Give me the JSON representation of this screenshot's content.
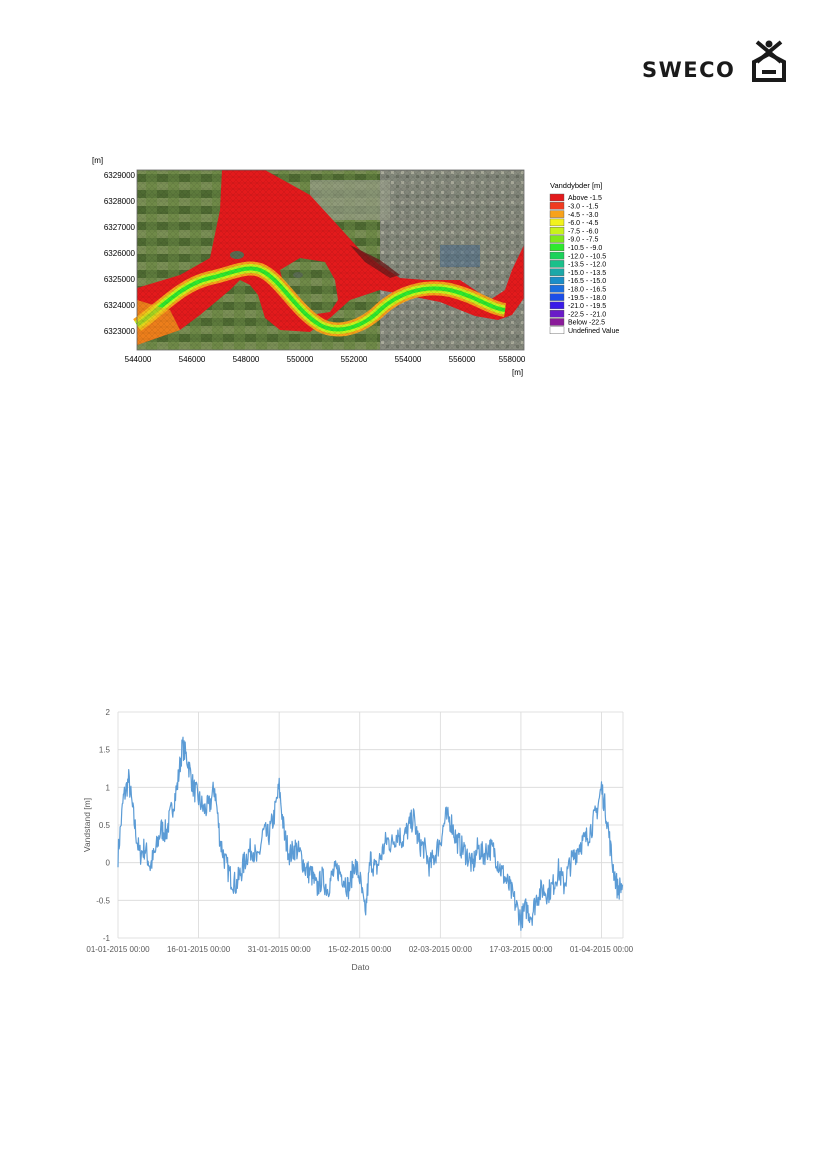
{
  "logo": {
    "text": "SWECO"
  },
  "map_figure": {
    "y_unit": "[m]",
    "x_unit": "[m]",
    "y_ticks": [
      "6329000",
      "6328000",
      "6327000",
      "6326000",
      "6325000",
      "6324000",
      "6323000"
    ],
    "x_ticks": [
      "544000",
      "546000",
      "548000",
      "550000",
      "552000",
      "554000",
      "556000",
      "558000"
    ],
    "legend": {
      "title": "Vanddybder [m]",
      "items": [
        {
          "label": "Above  -1.5",
          "color": "#e31a1c"
        },
        {
          "label": "-3.0 -  -1.5",
          "color": "#f03b20"
        },
        {
          "label": "-4.5 -  -3.0",
          "color": "#f7a21b"
        },
        {
          "label": "-6.0 -  -4.5",
          "color": "#f2f21b"
        },
        {
          "label": "-7.5 -  -6.0",
          "color": "#c8f21b"
        },
        {
          "label": "-9.0 -  -7.5",
          "color": "#7ee81b"
        },
        {
          "label": "-10.5 -  -9.0",
          "color": "#2ee82e"
        },
        {
          "label": "-12.0 - -10.5",
          "color": "#1bd25a"
        },
        {
          "label": "-13.5 - -12.0",
          "color": "#1bc08a"
        },
        {
          "label": "-15.0 - -13.5",
          "color": "#1ba8a8"
        },
        {
          "label": "-16.5 - -15.0",
          "color": "#1b8ec8"
        },
        {
          "label": "-18.0 - -16.5",
          "color": "#1b6ee0"
        },
        {
          "label": "-19.5 - -18.0",
          "color": "#1b4ee8"
        },
        {
          "label": "-21.0 - -19.5",
          "color": "#3a1be8"
        },
        {
          "label": "-22.5 - -21.0",
          "color": "#6a1bc8"
        },
        {
          "label": "Below  -22.5",
          "color": "#8a1b9a"
        },
        {
          "label": "Undefined Value",
          "color": "#ffffff"
        }
      ]
    }
  },
  "chart_data": {
    "type": "line",
    "xlabel": "Dato",
    "ylabel": "Vandstand [m]",
    "ylim": [
      -1,
      2
    ],
    "yticks": [
      2,
      1.5,
      1,
      0.5,
      0,
      -0.5,
      -1
    ],
    "ytick_labels": [
      "2",
      "1.5",
      "1",
      "0.5",
      "0",
      "-0.5",
      "-1"
    ],
    "x_tick_labels": [
      "01-01-2015 00:00",
      "16-01-2015 00:00",
      "31-01-2015 00:00",
      "15-02-2015 00:00",
      "02-03-2015 00:00",
      "17-03-2015 00:00",
      "01-04-2015 00:00"
    ],
    "grid": true,
    "line_color": "#5b9bd5",
    "series": [
      {
        "x": [
          "01-01",
          "02-01",
          "03-01",
          "04-01",
          "05-01",
          "06-01",
          "07-01",
          "08-01",
          "09-01",
          "10-01",
          "11-01",
          "12-01",
          "13-01",
          "14-01",
          "15-01",
          "16-01",
          "17-01",
          "18-01",
          "19-01",
          "20-01",
          "21-01",
          "22-01",
          "23-01",
          "24-01",
          "25-01",
          "26-01",
          "27-01",
          "28-01",
          "29-01",
          "30-01",
          "31-01",
          "01-02",
          "02-02",
          "03-02",
          "04-02",
          "05-02",
          "06-02",
          "07-02",
          "08-02",
          "09-02",
          "10-02",
          "11-02",
          "12-02",
          "13-02",
          "14-02",
          "15-02",
          "16-02",
          "17-02",
          "18-02",
          "19-02",
          "20-02",
          "21-02",
          "22-02",
          "23-02",
          "24-02",
          "25-02",
          "26-02",
          "27-02",
          "28-02",
          "01-03",
          "02-03",
          "03-03",
          "04-03",
          "05-03",
          "06-03",
          "07-03",
          "08-03",
          "09-03",
          "10-03",
          "11-03",
          "12-03",
          "13-03",
          "14-03",
          "15-03",
          "16-03",
          "17-03",
          "18-03",
          "19-03",
          "20-03",
          "21-03",
          "22-03",
          "23-03",
          "24-03",
          "25-03",
          "26-03",
          "27-03",
          "28-03",
          "29-03",
          "30-03",
          "31-03",
          "01-04",
          "02-04",
          "03-04",
          "04-04",
          "05-04"
        ],
        "values": [
          0.1,
          0.85,
          1.1,
          0.55,
          0.1,
          0.2,
          -0.05,
          0.15,
          0.45,
          0.4,
          0.7,
          1.0,
          1.55,
          1.35,
          1.0,
          0.85,
          0.7,
          0.75,
          1.0,
          0.3,
          0.0,
          -0.2,
          -0.3,
          -0.1,
          0.1,
          0.2,
          0.0,
          0.4,
          0.35,
          0.6,
          1.0,
          0.35,
          0.1,
          0.2,
          0.1,
          -0.1,
          -0.15,
          -0.35,
          -0.2,
          -0.35,
          -0.15,
          -0.1,
          -0.2,
          -0.35,
          0.0,
          -0.2,
          -0.7,
          0.05,
          -0.1,
          0.1,
          0.3,
          0.25,
          0.4,
          0.3,
          0.45,
          0.6,
          0.25,
          0.2,
          -0.05,
          0.1,
          0.3,
          0.6,
          0.55,
          0.3,
          0.2,
          0.1,
          -0.05,
          0.2,
          0.1,
          0.2,
          0.15,
          -0.05,
          -0.2,
          -0.35,
          -0.55,
          -0.75,
          -0.6,
          -0.7,
          -0.45,
          -0.35,
          -0.4,
          -0.3,
          -0.1,
          -0.3,
          -0.05,
          0.1,
          0.25,
          0.3,
          0.45,
          0.65,
          1.0,
          0.6,
          0.0,
          -0.35,
          -0.3
        ]
      }
    ]
  }
}
